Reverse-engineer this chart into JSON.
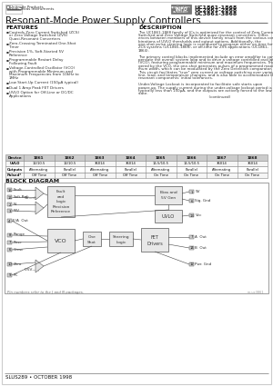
{
  "page_bg": "#ffffff",
  "title": "Resonant-Mode Power Supply Controllers",
  "part_numbers": [
    "UC1861-1868",
    "UC2861-2868",
    "UC3861-3868"
  ],
  "features_title": "FEATURES",
  "features": [
    "Controls Zero Current Switched (ZCS)\nor Zero Voltage Switched (ZVS)\nQuasi-Resonant Converters",
    "Zero-Crossing Terminated One-Shot\nTimer",
    "Precision 1%, Soft-Started 5V\nReference",
    "Programmable Restart Delay\nFollowing Fault",
    "Voltage-Controlled Oscillator (VCO)\nwith Programmable Minimum and\nMaximum Frequencies from 10kHz to\n1MHz",
    "Low Start-Up Current (150μA typical)",
    "Dual 1 Amp Peak FET Drivers",
    "UVLO Option for Off-Line or DC/DC\nApplications"
  ],
  "desc_title": "DESCRIPTION",
  "desc_lines": [
    "The UC1861-1868 family of ICs is optimized for the control of Zero Current",
    "Switched and Zero Voltage Switched quasi-resonant converters. Differ-",
    "ences between members of this device family result from the various com-",
    "binations of UVLO thresholds and output options. Additionally, the",
    "one-shot pulse steering logic is configured to program either on-time for",
    "ZCS systems (UC1865-1868), or off-time for ZVS applications (UC1861-",
    "1864).",
    "",
    "The primary control blocks implemented include an error amplifier to com-",
    "pensate the overall system loop and to drive a voltage controlled oscillator",
    "(VCO), featuring programmable minimum and maximum frequencies. Trig-",
    "gered by the VCO, the one-shot generates pulses of a programmed maxi-",
    "mum width, which can be modulated by the Zero Detection comparator.",
    "This circuit facilitates \"true\" zero current or voltage switching over various",
    "line, load, and temperature changes, and is also able to accommodate the",
    "resonant components' initial tolerances.",
    "",
    "Under-Voltage Lockout is incorporated to facilitate safe starts upon",
    "power-up. The supply current during the under-voltage lockout period is",
    "typically less than 150μA, and the outputs are actively forced to the low",
    "state.",
    "                                                              (continued)"
  ],
  "table_headers": [
    "Device",
    "1861",
    "1862",
    "1863",
    "1864",
    "1865",
    "1866",
    "1867",
    "1868"
  ],
  "table_rows": [
    [
      "UVLO",
      "16/10.5",
      "16/10.5",
      "36014",
      "36014",
      "16.5/10.5",
      "16.5/10.5",
      "36014",
      "36014"
    ],
    [
      "Outputs",
      "Alternating",
      "Parallel",
      "Alternating",
      "Parallel",
      "Alternating",
      "Parallel",
      "Alternating",
      "Parallel"
    ],
    [
      "Pulsed*",
      "Off Time",
      "Off Time",
      "Off Time",
      "Off Time",
      "On Time",
      "On Time",
      "On Time",
      "On Time"
    ]
  ],
  "block_diag_title": "BLOCK DIAGRAM",
  "footer": "Pin numbers refer to the J and N packages.",
  "doc_num": "SLUS289 • OCTOBER 1998"
}
